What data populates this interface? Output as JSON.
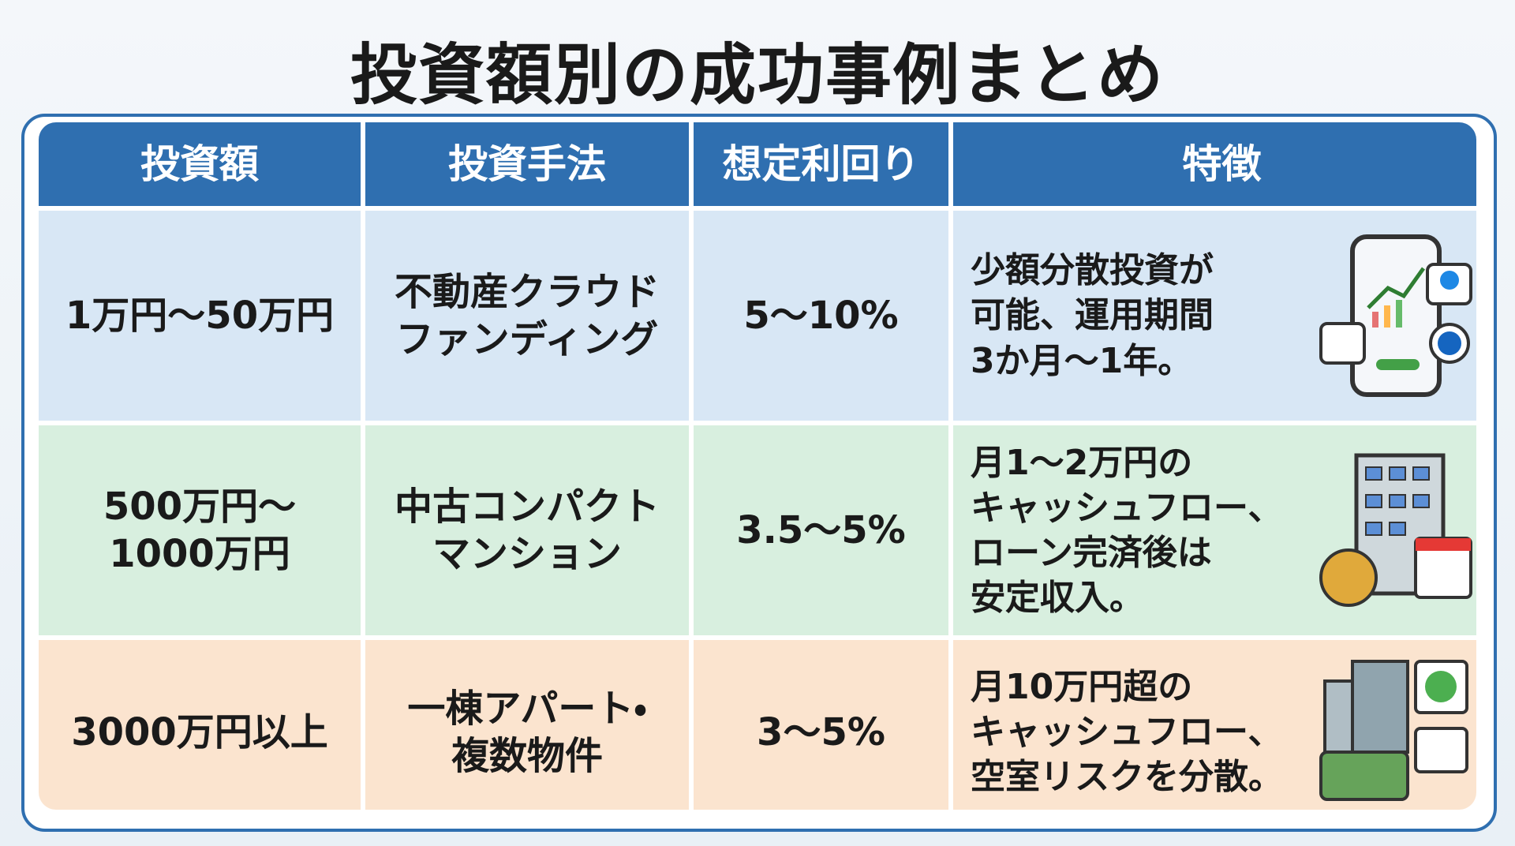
{
  "header": {
    "title": "投資額別の成功事例まとめ"
  },
  "table": {
    "headers": [
      "投資額",
      "投資手法",
      "想定利回り",
      "特徴"
    ],
    "rows": [
      [
        "1万円〜50万円",
        "不動産クラウド\nファンディング",
        "5〜10%",
        "少額分散投資が\n可能、運用期間\n3か月〜1年。"
      ],
      [
        "500万円〜\n1000万円",
        "中古コンパクト\nマンション",
        "3.5〜5%",
        "月1〜2万円の\nキャッシュフロー、\nローン完済後は\n安定収入。"
      ],
      [
        "3000万円以上",
        "一棟アパート・\n複数物件",
        "3〜5%",
        "月10万円超の\nキャッシュフロー、\n空室リスクを分散。"
      ]
    ]
  }
}
